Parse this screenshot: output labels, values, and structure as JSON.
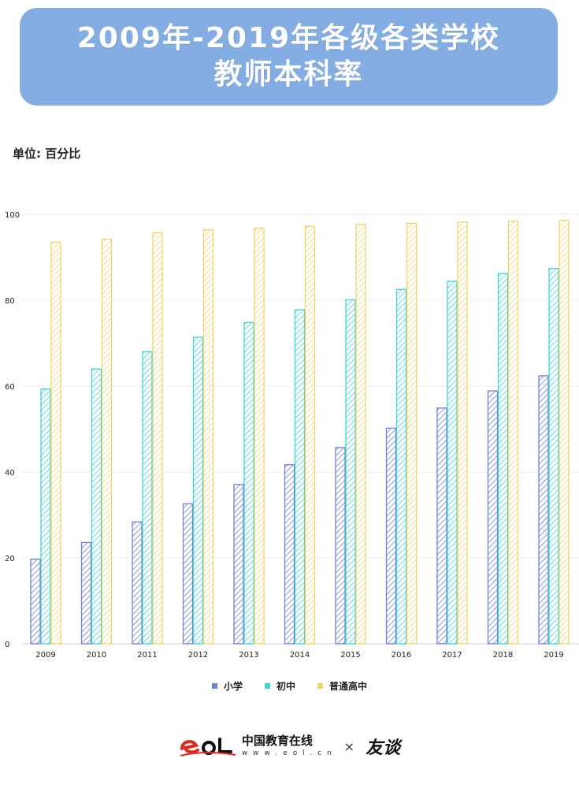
{
  "title": {
    "line1": "2009年-2019年各级各类学校",
    "line2": "教师本科率"
  },
  "unit": "单位: 百分比",
  "footer": {
    "logo_name": "中国教育在线",
    "logo_url": "w w w . e o l . c n",
    "times": "×",
    "partner": "友谈"
  },
  "colors": {
    "banner": "#84aee3",
    "primary": "#6f7fdc",
    "junior": "#3fd2d6",
    "senior": "#f2d46b"
  },
  "chart_data": {
    "type": "bar",
    "categories": [
      "2009",
      "2010",
      "2011",
      "2012",
      "2013",
      "2014",
      "2015",
      "2016",
      "2017",
      "2018",
      "2019"
    ],
    "series": [
      {
        "name": "小学",
        "color": "#6f7fdc",
        "values": [
          19.7,
          23.6,
          28.4,
          32.6,
          37.1,
          41.7,
          45.7,
          50.2,
          54.9,
          58.9,
          62.4
        ]
      },
      {
        "name": "初中",
        "color": "#3fd2d6",
        "values": [
          59.3,
          64.0,
          68.0,
          71.4,
          74.8,
          77.8,
          80.1,
          82.5,
          84.4,
          86.2,
          87.4
        ]
      },
      {
        "name": "普通高中",
        "color": "#f2d46b",
        "values": [
          93.5,
          94.2,
          95.7,
          96.4,
          96.8,
          97.2,
          97.7,
          97.9,
          98.2,
          98.4,
          98.6
        ]
      }
    ],
    "ylim": [
      0,
      100
    ],
    "yticks": [
      0,
      20,
      40,
      60,
      80,
      100
    ],
    "grid": true,
    "legend_position": "bottom"
  }
}
